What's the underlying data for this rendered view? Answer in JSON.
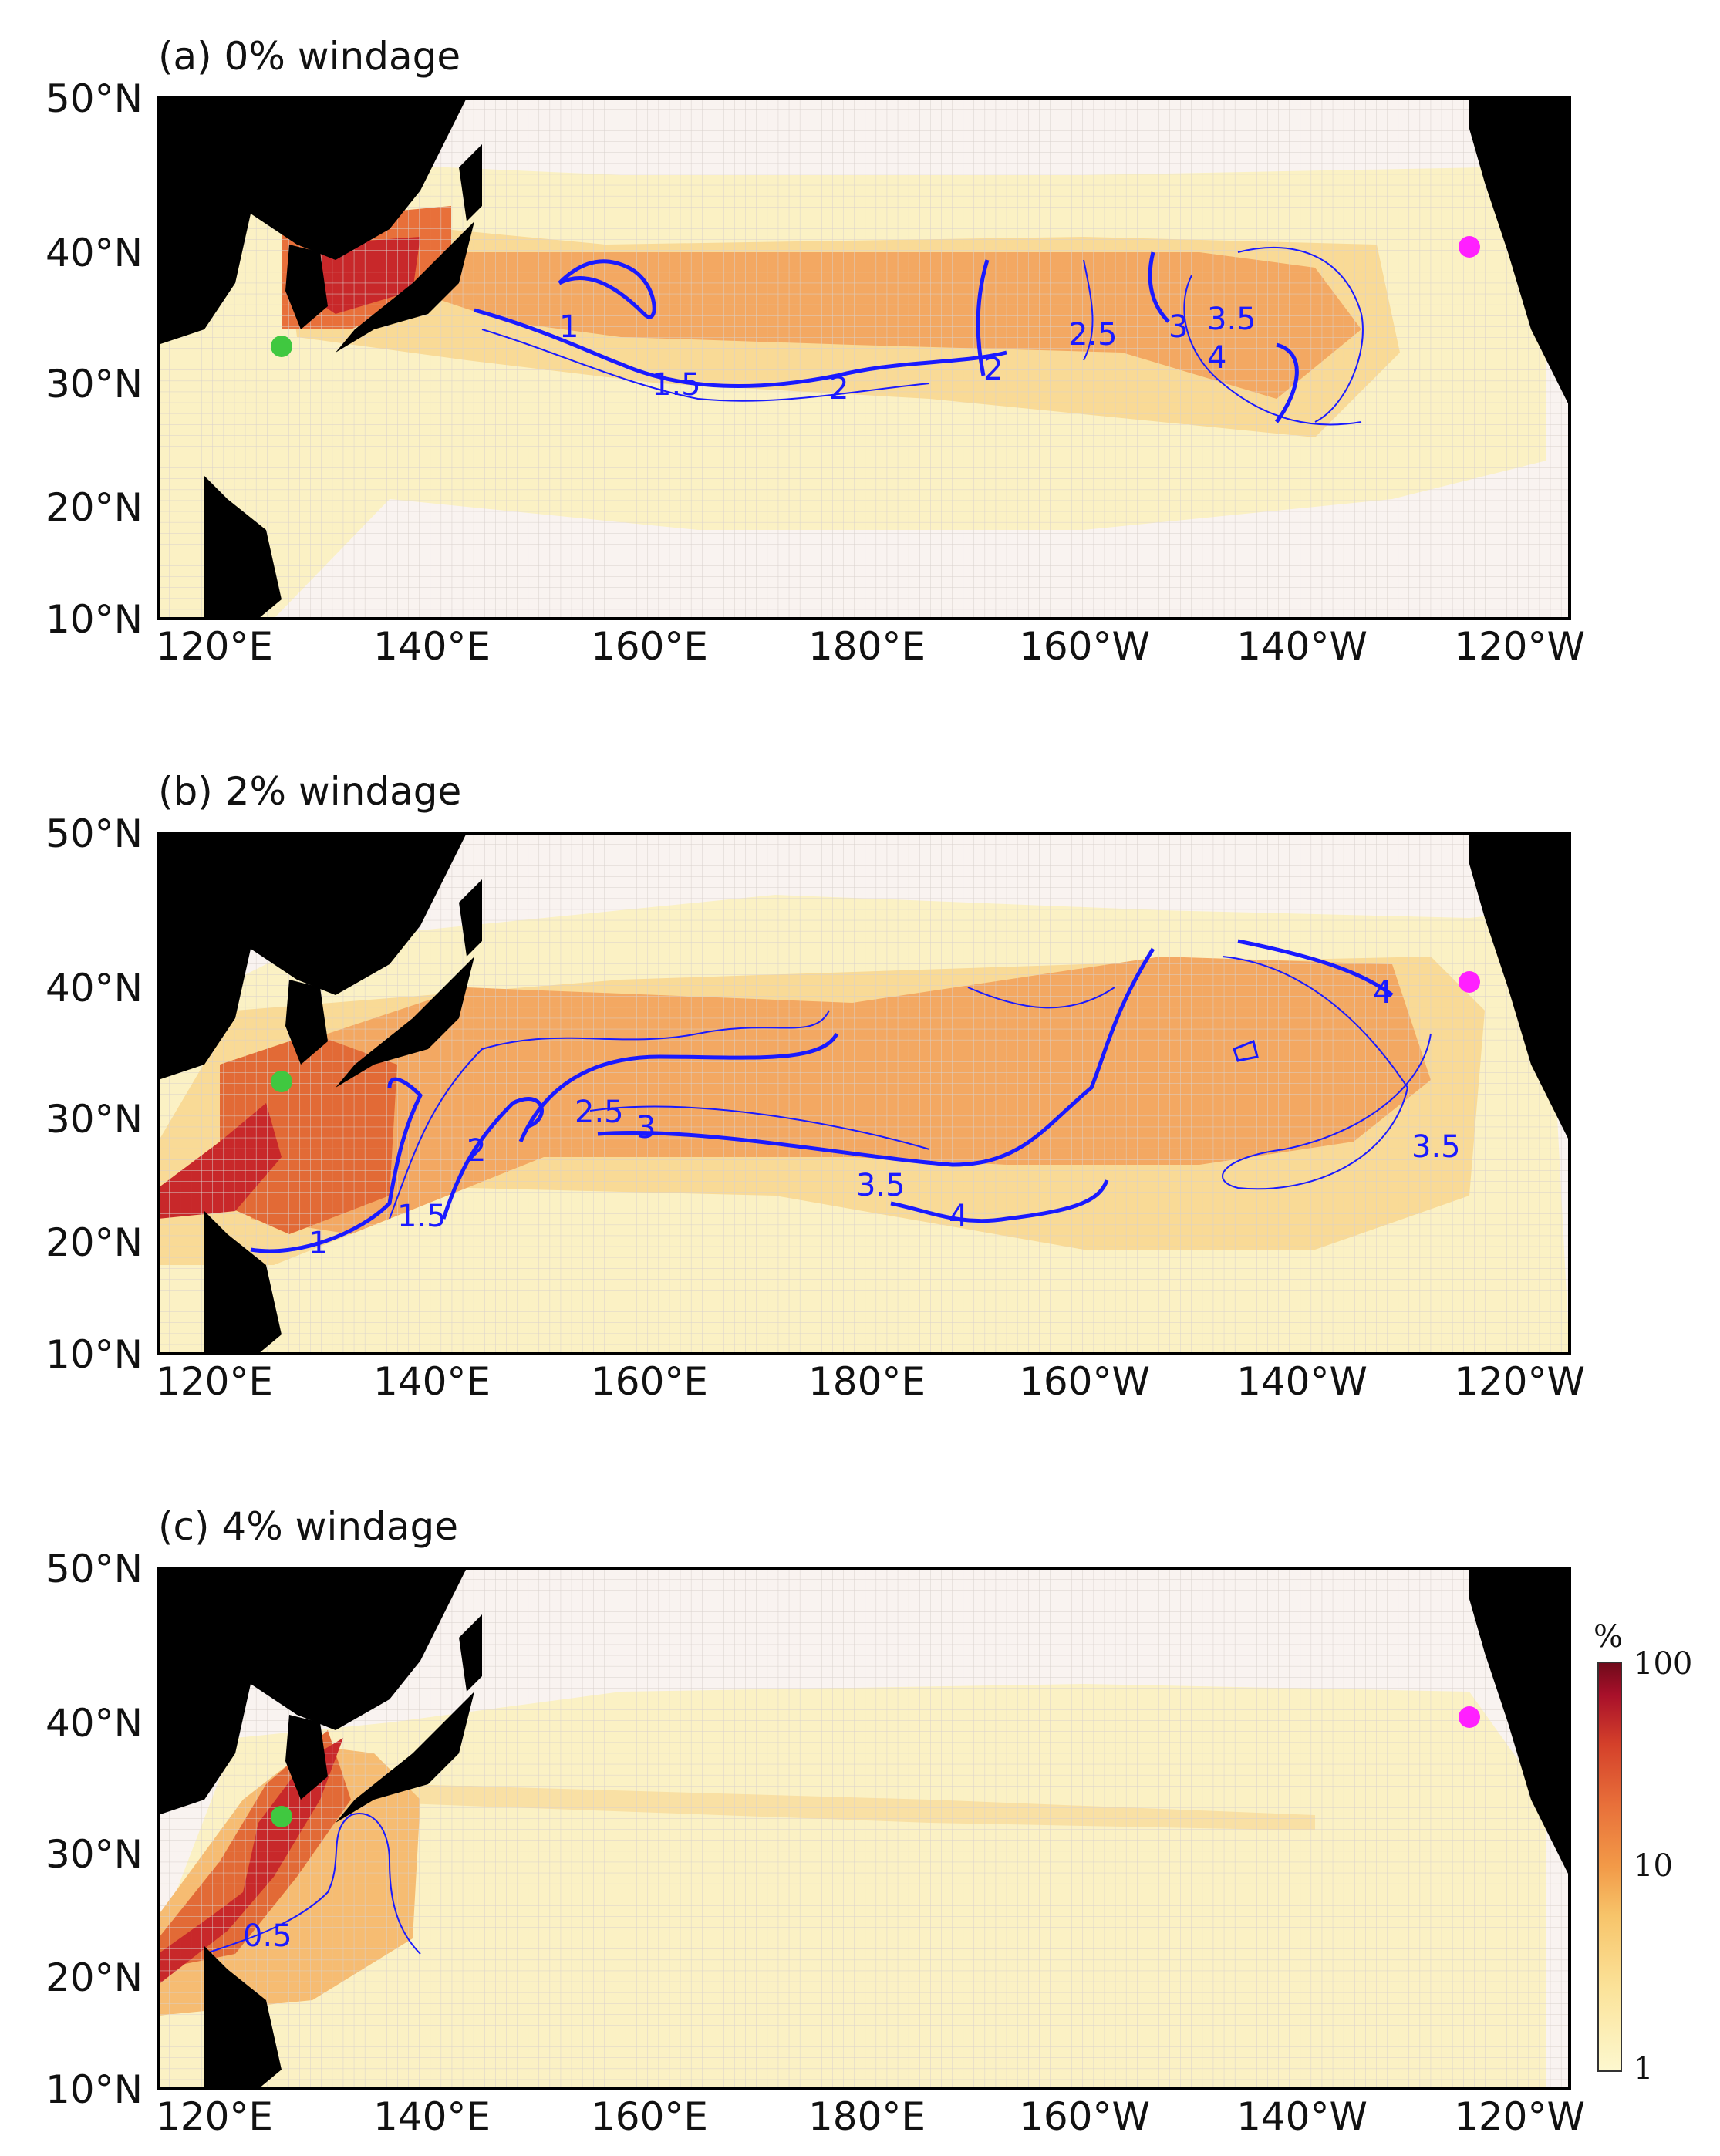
{
  "figure": {
    "panels": [
      {
        "title": "(a) 0% windage",
        "contour_labels": [
          "1",
          "1.5",
          "2",
          "2",
          "2.5",
          "3",
          "3.5",
          "4"
        ]
      },
      {
        "title": "(b) 2% windage",
        "contour_labels": [
          "1",
          "1.5",
          "2",
          "2.5",
          "3",
          "3.5",
          "3.5",
          "4",
          "4"
        ]
      },
      {
        "title": "(c) 4% windage",
        "contour_labels": [
          "0.5"
        ]
      }
    ],
    "lat_ticks": [
      "50°N",
      "40°N",
      "30°N",
      "20°N",
      "10°N"
    ],
    "lon_ticks": [
      "120°E",
      "140°E",
      "160°E",
      "180°E",
      "160°W",
      "140°W",
      "120°W"
    ],
    "markers": {
      "source": {
        "name": "green dot",
        "color": "#40c840"
      },
      "target": {
        "name": "magenta dot",
        "color": "#ff20ff"
      }
    },
    "colorbar": {
      "unit": "%",
      "ticks": [
        "100",
        "10",
        "1"
      ],
      "scale": "log",
      "range": [
        1,
        100
      ],
      "colors": [
        "#fdf8cf",
        "#fbe39a",
        "#f7c46a",
        "#f29a48",
        "#e8703a",
        "#d4402a",
        "#a8102a",
        "#6e0a1a"
      ]
    },
    "colors": {
      "land": "#000000",
      "ocean_low": "#f9f3f0",
      "contour": "#1a1aff"
    }
  }
}
